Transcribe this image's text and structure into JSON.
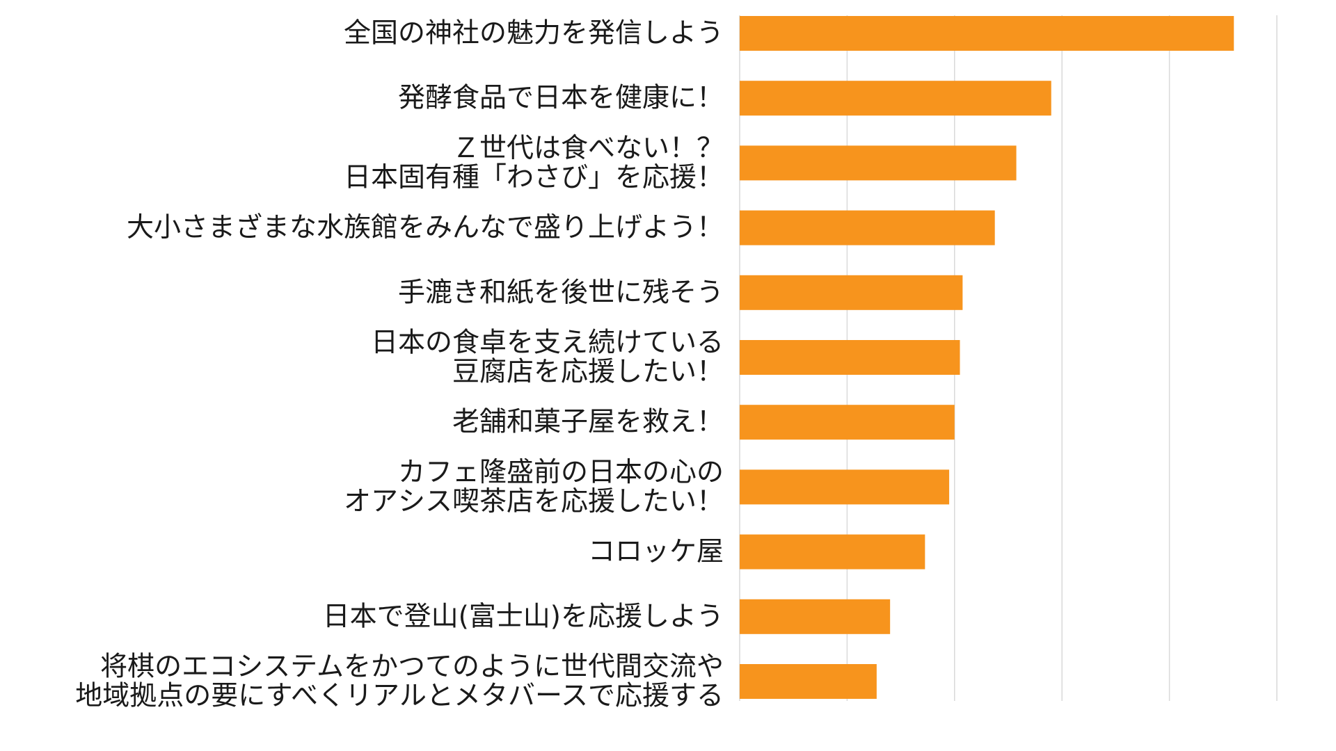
{
  "chart_data": {
    "type": "bar",
    "orientation": "horizontal",
    "title": "",
    "xlabel": "",
    "ylabel": "",
    "grid": true,
    "legend": "none",
    "xlim": [
      0,
      100
    ],
    "bar_color": "#F7941D",
    "categories": [
      [
        "全国の神社の魅力を発信しよう"
      ],
      [
        "発酵食品で日本を健康に！"
      ],
      [
        "Ｚ世代は食べない！？",
        "日本固有種「わさび」を応援！"
      ],
      [
        "大小さまざまな水族館をみんなで盛り上げよう！"
      ],
      [
        "手漉き和紙を後世に残そう"
      ],
      [
        "日本の食卓を支え続けている",
        "豆腐店を応援したい！"
      ],
      [
        "老舗和菓子屋を救え！"
      ],
      [
        "カフェ隆盛前の日本の心の",
        "オアシス喫茶店を応援したい！"
      ],
      [
        "コロッケ屋"
      ],
      [
        "日本で登山(富士山)を応援しよう"
      ],
      [
        "将棋のエコシステムをかつてのように世代間交流や",
        "地域拠点の要にすべくリアルとメタバースで応援する"
      ]
    ],
    "values": [
      92,
      58,
      51.5,
      47.5,
      41.5,
      41,
      40,
      39,
      34.5,
      28,
      25.5
    ]
  }
}
